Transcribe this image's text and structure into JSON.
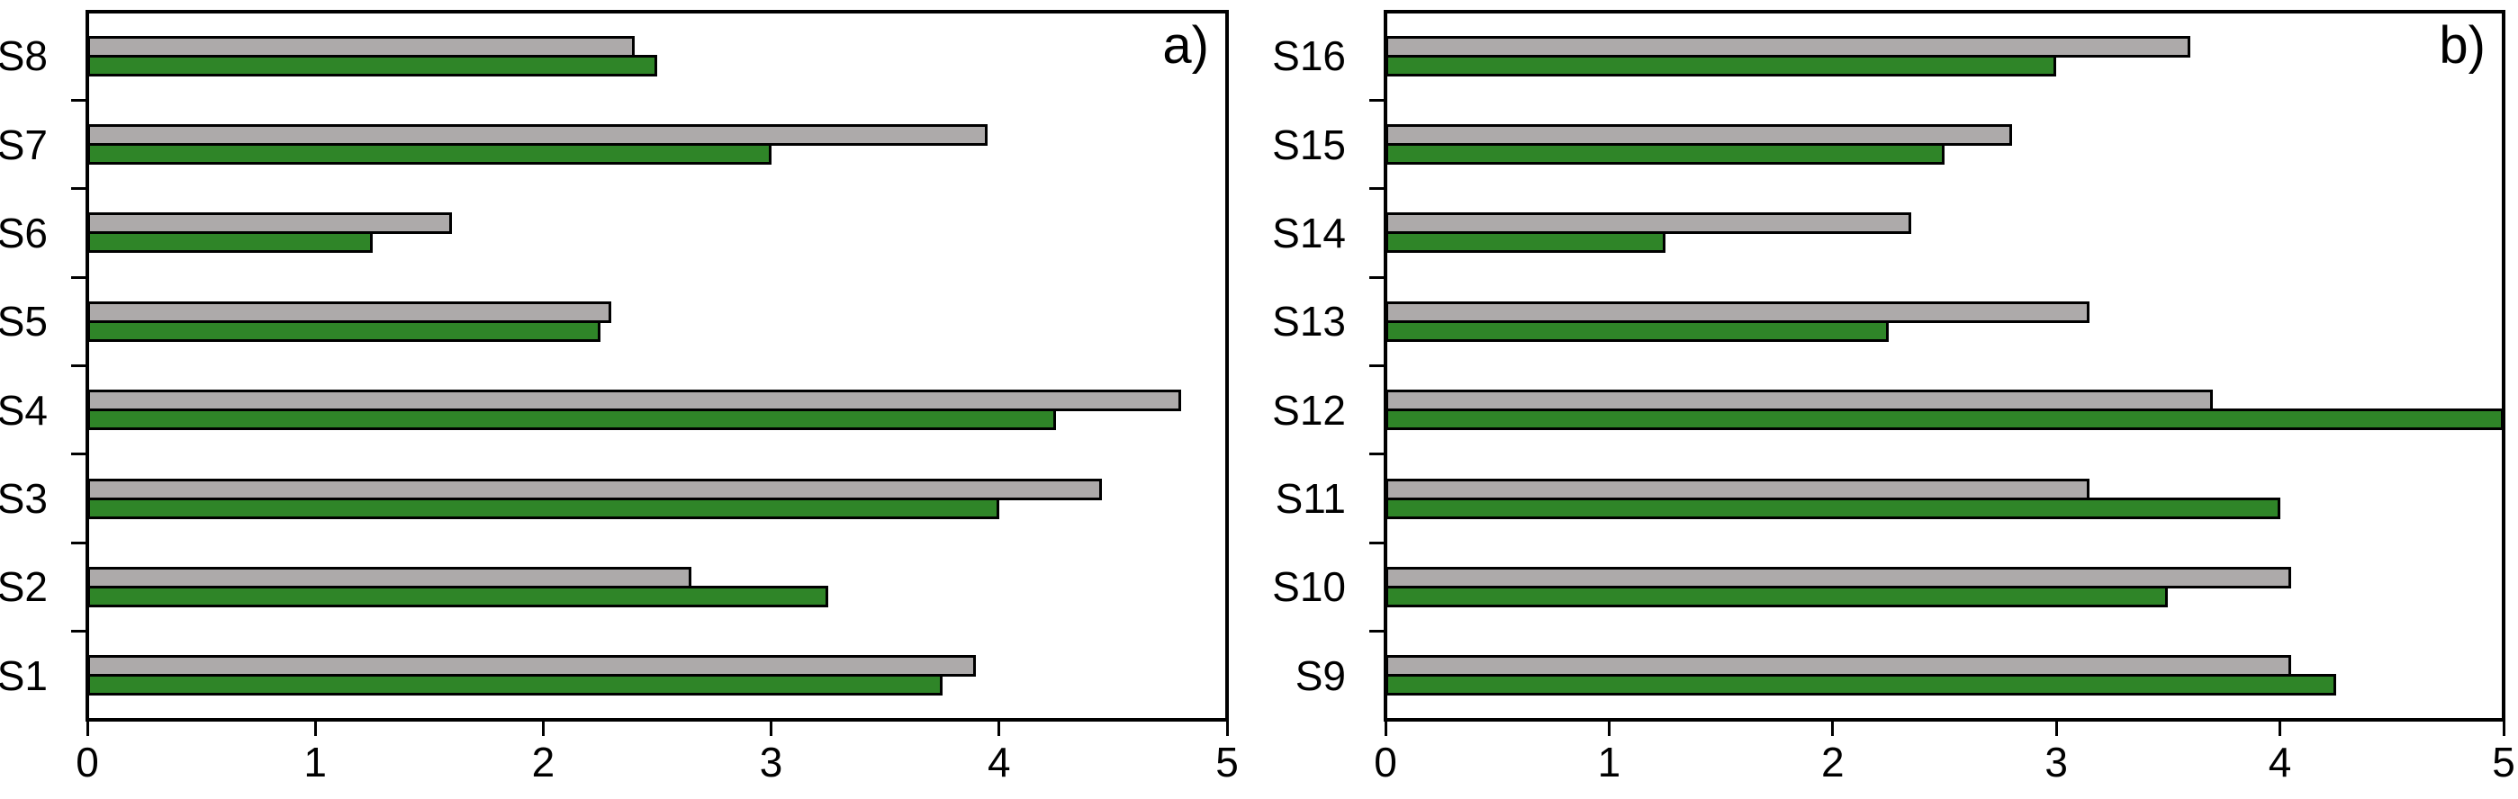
{
  "chart_data": {
    "type": "bar",
    "orientation": "horizontal",
    "background_color": "#FFFFFF",
    "axis_color": "#000000",
    "bar_outline_color": "#000000",
    "grid": false,
    "legend": "none",
    "series_colors": {
      "gray": "#ADAAAA",
      "green": "#2F8528"
    },
    "xlim": [
      0,
      5
    ],
    "xtick_labels": [
      "0",
      "1",
      "2",
      "3",
      "4",
      "5"
    ],
    "panels": [
      {
        "id": "a",
        "corner_label": "a)",
        "categories_top_to_bottom": [
          "S8",
          "S7",
          "S6",
          "S5",
          "S4",
          "S3",
          "S2",
          "S1"
        ],
        "series": [
          {
            "name": "gray",
            "values": [
              2.4,
              3.95,
              1.6,
              2.3,
              4.8,
              4.45,
              2.65,
              3.9
            ]
          },
          {
            "name": "green",
            "values": [
              2.5,
              3.0,
              1.25,
              2.25,
              4.25,
              4.0,
              3.25,
              3.75
            ]
          }
        ]
      },
      {
        "id": "b",
        "corner_label": "b)",
        "categories_top_to_bottom": [
          "S16",
          "S15",
          "S14",
          "S13",
          "S12",
          "S11",
          "S10",
          "S9"
        ],
        "series": [
          {
            "name": "gray",
            "values": [
              3.6,
              2.8,
              2.35,
              3.15,
              3.7,
              3.15,
              4.05,
              4.05
            ]
          },
          {
            "name": "green",
            "values": [
              3.0,
              2.5,
              1.25,
              2.25,
              5.0,
              4.0,
              3.5,
              4.25
            ]
          }
        ]
      }
    ]
  }
}
